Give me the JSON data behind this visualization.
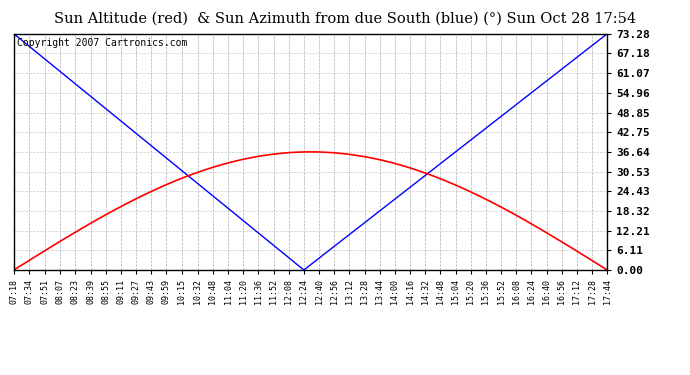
{
  "title": "Sun Altitude (red)  & Sun Azimuth from due South (blue) (°) Sun Oct 28 17:54",
  "copyright": "Copyright 2007 Cartronics.com",
  "yticks": [
    0.0,
    6.11,
    12.21,
    18.32,
    24.43,
    30.53,
    36.64,
    42.75,
    48.85,
    54.96,
    61.07,
    67.18,
    73.28
  ],
  "ymin": 0.0,
  "ymax": 73.28,
  "line_color_altitude": "red",
  "line_color_azimuth": "blue",
  "background_color": "#ffffff",
  "plot_bg_color": "#ffffff",
  "grid_color": "#bbbbbb",
  "title_fontsize": 10.5,
  "copyright_fontsize": 7,
  "xtick_fontsize": 6,
  "ytick_fontsize": 8,
  "time_labels": [
    "07:18",
    "07:34",
    "07:51",
    "08:07",
    "08:23",
    "08:39",
    "08:55",
    "09:11",
    "09:27",
    "09:43",
    "09:59",
    "10:15",
    "10:32",
    "10:48",
    "11:04",
    "11:20",
    "11:36",
    "11:52",
    "12:08",
    "12:24",
    "12:40",
    "12:56",
    "13:12",
    "13:28",
    "13:44",
    "14:00",
    "14:16",
    "14:32",
    "14:48",
    "15:04",
    "15:20",
    "15:36",
    "15:52",
    "16:08",
    "16:24",
    "16:40",
    "16:56",
    "17:12",
    "17:28",
    "17:44"
  ],
  "azimuth_min_time": "12:24",
  "altitude_max": 36.64,
  "azimuth_max": 73.28,
  "t_start": "07:18",
  "t_end": "17:44"
}
